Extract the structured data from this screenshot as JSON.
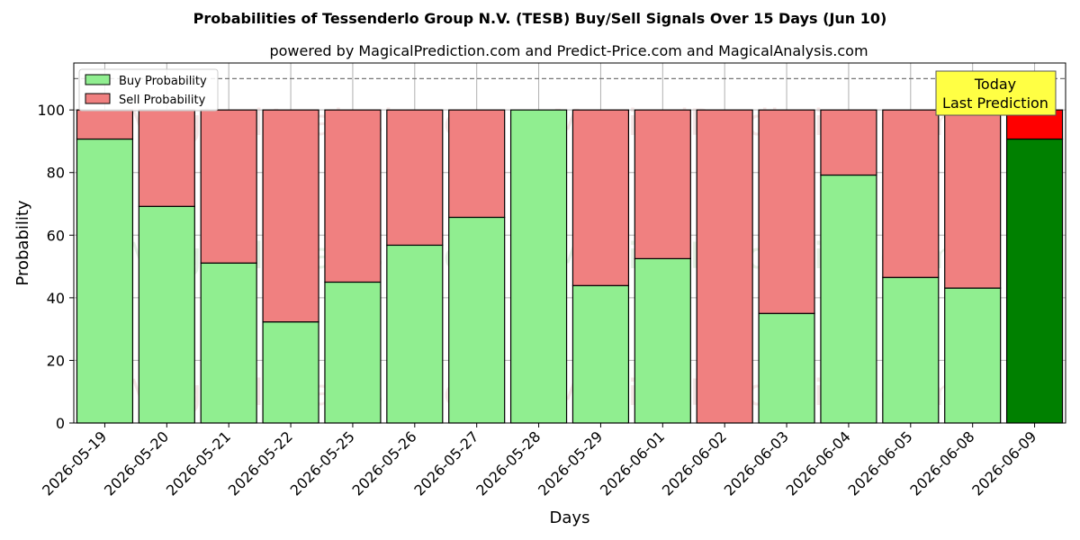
{
  "chart_data": {
    "type": "bar",
    "stacked": true,
    "title": "Probabilities of Tessenderlo Group N.V. (TESB) Buy/Sell Signals Over 15 Days (Jun 10)",
    "subtitle": "powered by MagicalPrediction.com and Predict-Price.com and MagicalAnalysis.com",
    "xlabel": "Days",
    "ylabel": "Probability",
    "ylim": [
      0,
      115
    ],
    "yticks": [
      0,
      20,
      40,
      60,
      80,
      100
    ],
    "reference_line": 110,
    "grid": true,
    "legend_position": "top-left",
    "categories": [
      "2026-05-19",
      "2026-05-20",
      "2026-05-21",
      "2026-05-22",
      "2026-05-25",
      "2026-05-26",
      "2026-05-27",
      "2026-05-28",
      "2026-05-29",
      "2026-06-01",
      "2026-06-02",
      "2026-06-03",
      "2026-06-04",
      "2026-06-05",
      "2026-06-08",
      "2026-06-09"
    ],
    "series": [
      {
        "name": "Buy Probability",
        "color": "#90ee90",
        "values": [
          90.7,
          69.2,
          51.1,
          32.3,
          45.0,
          56.8,
          65.7,
          100.0,
          43.9,
          52.5,
          0.0,
          35.0,
          79.2,
          46.5,
          43.1,
          90.7
        ]
      },
      {
        "name": "Sell Probability",
        "color": "#f08080",
        "values": [
          9.3,
          30.8,
          48.9,
          67.7,
          55.0,
          43.2,
          34.3,
          0.0,
          56.1,
          47.5,
          100.0,
          65.0,
          20.8,
          53.5,
          56.9,
          9.3
        ]
      }
    ],
    "highlight": {
      "index": 15,
      "buy_color": "#008000",
      "sell_color": "#ff0000"
    },
    "annotation": {
      "line1": "Today",
      "line2": "Last Prediction",
      "color": "#ffff44"
    },
    "watermarks": [
      {
        "text": "MagicalAnalysis.com",
        "row": 1,
        "col": 1
      },
      {
        "text": "MagicalPrediction.com",
        "row": 1,
        "col": 2
      },
      {
        "text": "MagicalAnalysis.com",
        "row": 2,
        "col": 1
      },
      {
        "text": "MagicalPrediction.com",
        "row": 2,
        "col": 2
      },
      {
        "text": "MagicalAnalysis.com",
        "row": 3,
        "col": 1
      },
      {
        "text": "MagicalPrediction.com",
        "row": 3,
        "col": 2
      }
    ]
  }
}
